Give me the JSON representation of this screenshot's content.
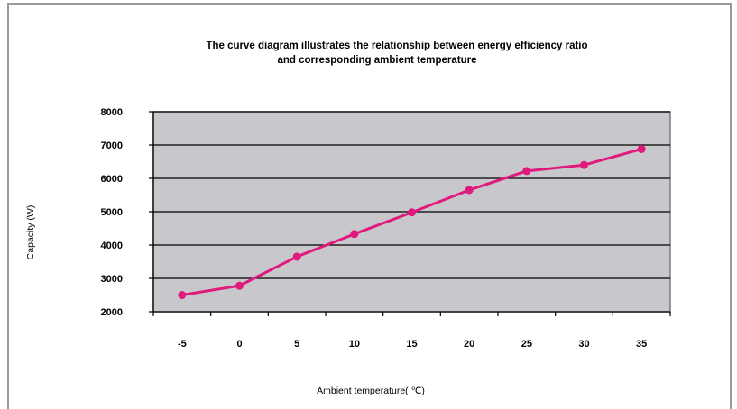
{
  "chart_data": {
    "type": "line",
    "title_lines": [
      "The curve diagram illustrates the relationship between energy efficiency ratio",
      "and corresponding ambient temperature"
    ],
    "xlabel": "Ambient temperature(  ℃)",
    "ylabel": "Capacity (W)",
    "categories": [
      "-5",
      "0",
      "5",
      "10",
      "15",
      "20",
      "25",
      "30",
      "35"
    ],
    "series": [
      {
        "values": [
          2500,
          2780,
          3650,
          4330,
          4980,
          5650,
          6220,
          6400,
          6880
        ]
      }
    ],
    "ylim": [
      2000,
      8000
    ],
    "yticks": [
      "2000",
      "3000",
      "4000",
      "5000",
      "6000",
      "7000",
      "8000"
    ],
    "grid": true,
    "colors": {
      "line": "#e0197d",
      "plot_background": "#c8c8cc",
      "grid": "#000000"
    }
  }
}
